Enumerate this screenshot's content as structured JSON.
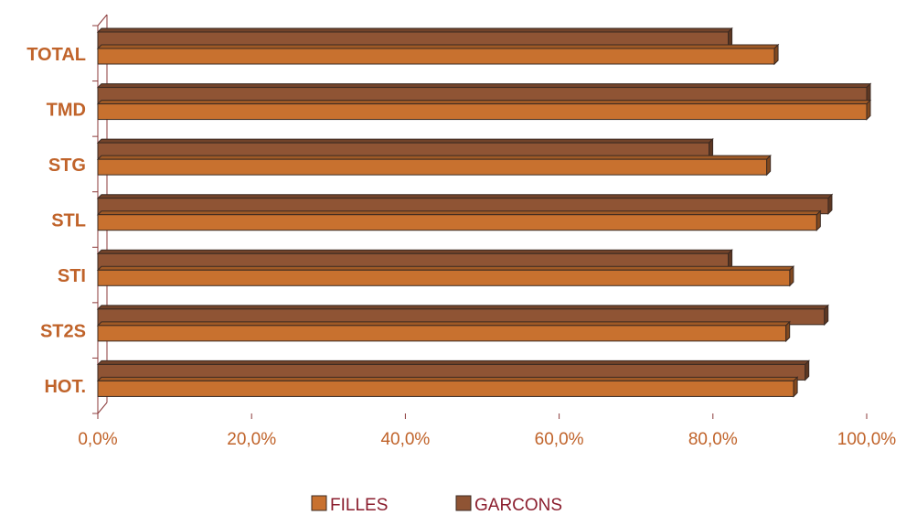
{
  "chart_data": {
    "type": "bar",
    "orientation": "horizontal",
    "style": "3d",
    "categories": [
      "TOTAL",
      "TMD",
      "STG",
      "STL",
      "STI",
      "ST2S",
      "HOT."
    ],
    "series": [
      {
        "name": "GARCONS",
        "values": [
          82,
          100,
          79.5,
          95,
          82,
          94.5,
          92
        ]
      },
      {
        "name": "FILLES",
        "values": [
          88,
          100,
          87,
          93.5,
          90,
          89.5,
          90.5
        ]
      }
    ],
    "xticks": [
      "0,0%",
      "20,0%",
      "40,0%",
      "60,0%",
      "80,0%",
      "100,0%"
    ],
    "xlim": [
      0,
      100
    ],
    "grid": false,
    "legend": "bottom",
    "legend_order": [
      "FILLES",
      "GARCONS"
    ],
    "colors": {
      "FILLES": "#C8712F",
      "GARCONS": "#8F5434",
      "category_text": "#C0632A",
      "tick_text": "#C0632A",
      "legend_text": "#8B1E2E",
      "axis": "#8B3A3A"
    }
  }
}
